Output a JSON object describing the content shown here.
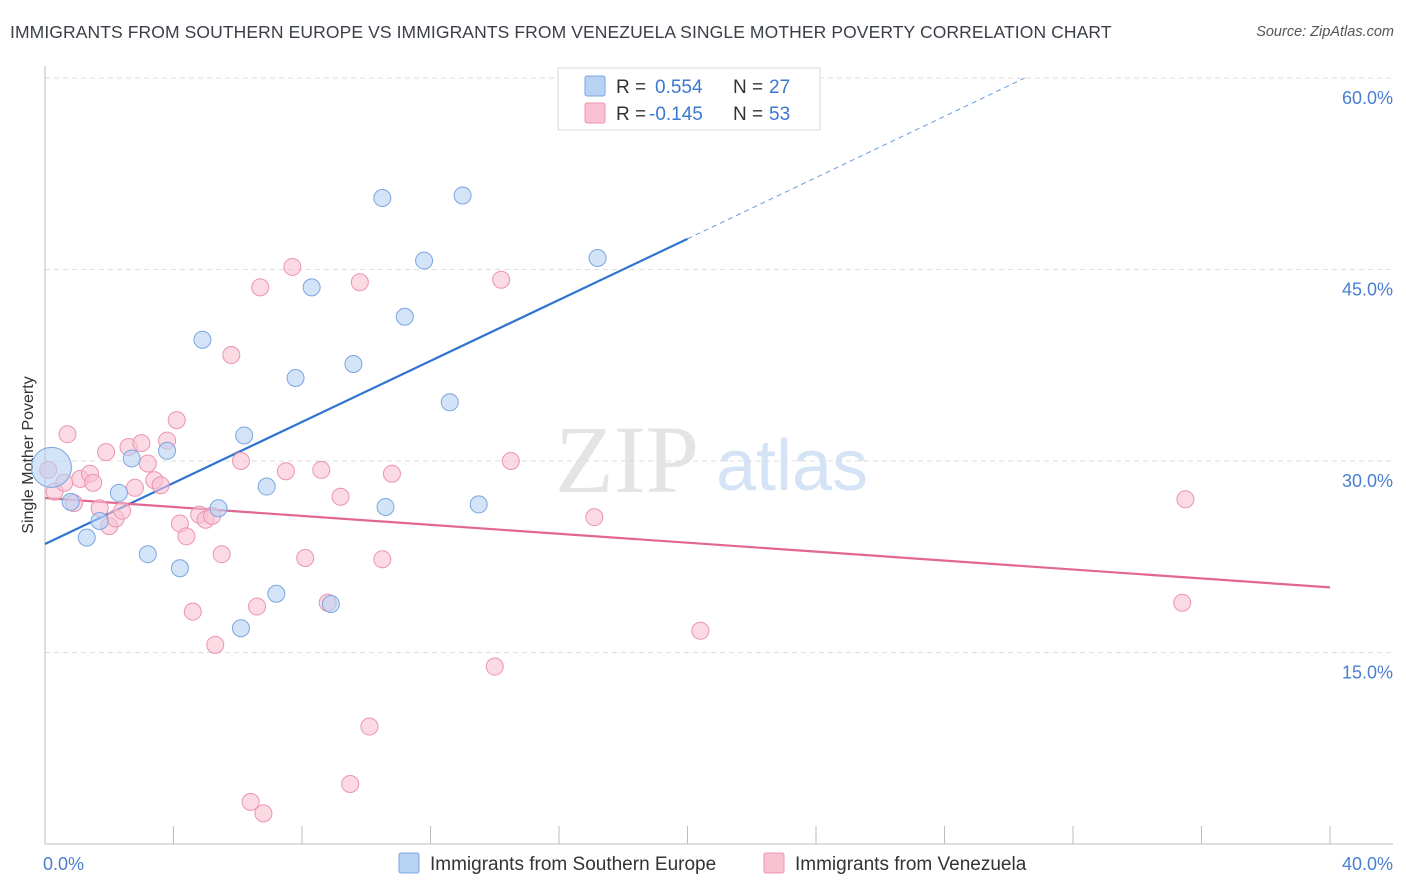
{
  "title": "IMMIGRANTS FROM SOUTHERN EUROPE VS IMMIGRANTS FROM VENEZUELA SINGLE MOTHER POVERTY CORRELATION CHART",
  "source": "Source: ZipAtlas.com",
  "watermark": {
    "zip": "ZIP",
    "atlas": "atlas"
  },
  "colors": {
    "blue_fill": "#b8d2f3",
    "blue_stroke": "#7aa6e0",
    "blue_line": "#2f74d0",
    "pink_fill": "#f8c2d2",
    "pink_stroke": "#ec94b0",
    "pink_line": "#e2668f",
    "axis_label": "#4a7fd0",
    "grid": "#dedede"
  },
  "legend": {
    "rows": [
      {
        "r_label": "R =",
        "r_value": "0.554",
        "n_label": "N =",
        "n_value": "27"
      },
      {
        "r_label": "R =",
        "r_value": "-0.145",
        "n_label": "N =",
        "n_value": "53"
      }
    ]
  },
  "chart_data": {
    "type": "scatter",
    "title": "IMMIGRANTS FROM SOUTHERN EUROPE VS IMMIGRANTS FROM VENEZUELA SINGLE MOTHER POVERTY CORRELATION CHART",
    "xlabel": "",
    "ylabel": "Single Mother Poverty",
    "xlim": [
      0,
      40
    ],
    "ylim": [
      0,
      60
    ],
    "x_tick_labels": [
      "0.0%",
      "40.0%"
    ],
    "y_ticks": [
      15,
      30,
      45,
      60
    ],
    "y_tick_labels": [
      "15.0%",
      "30.0%",
      "45.0%",
      "60.0%"
    ],
    "grid": true,
    "legend_position": "top-center",
    "series": [
      {
        "name": "Immigrants from Southern Europe",
        "color": "blue",
        "R": 0.554,
        "N": 27,
        "trend": {
          "x0": 0,
          "y0": 23.5,
          "x1": 20,
          "y1": 47.4,
          "dashed_to_x": 30.5,
          "dashed_to_y": 60.0
        },
        "points": [
          [
            0.2,
            29.5
          ],
          [
            0.8,
            26.8
          ],
          [
            1.3,
            24.0
          ],
          [
            1.7,
            25.3
          ],
          [
            2.3,
            27.5
          ],
          [
            2.7,
            30.2
          ],
          [
            3.2,
            22.7
          ],
          [
            3.8,
            30.8
          ],
          [
            4.2,
            21.6
          ],
          [
            4.9,
            39.5
          ],
          [
            5.4,
            26.3
          ],
          [
            6.1,
            16.9
          ],
          [
            6.2,
            32.0
          ],
          [
            6.9,
            28.0
          ],
          [
            7.2,
            19.6
          ],
          [
            7.8,
            36.5
          ],
          [
            8.3,
            43.6
          ],
          [
            8.9,
            18.8
          ],
          [
            9.6,
            37.6
          ],
          [
            10.5,
            50.6
          ],
          [
            10.6,
            26.4
          ],
          [
            11.2,
            41.3
          ],
          [
            11.8,
            45.7
          ],
          [
            12.6,
            34.6
          ],
          [
            13.0,
            50.8
          ],
          [
            13.5,
            26.6
          ],
          [
            17.2,
            45.9
          ]
        ]
      },
      {
        "name": "Immigrants from Venezuela",
        "color": "pink",
        "R": -0.145,
        "N": 53,
        "trend": {
          "x0": 0,
          "y0": 27.1,
          "x1": 40,
          "y1": 20.1
        },
        "points": [
          [
            0.1,
            29.3
          ],
          [
            0.3,
            27.6
          ],
          [
            0.6,
            28.3
          ],
          [
            0.7,
            32.1
          ],
          [
            0.9,
            26.7
          ],
          [
            1.1,
            28.6
          ],
          [
            1.4,
            29.0
          ],
          [
            1.5,
            28.3
          ],
          [
            1.7,
            26.3
          ],
          [
            1.9,
            30.7
          ],
          [
            2.0,
            24.9
          ],
          [
            2.2,
            25.5
          ],
          [
            2.4,
            26.1
          ],
          [
            2.6,
            31.1
          ],
          [
            2.8,
            27.9
          ],
          [
            3.0,
            31.4
          ],
          [
            3.2,
            29.8
          ],
          [
            3.4,
            28.5
          ],
          [
            3.6,
            28.1
          ],
          [
            3.8,
            31.6
          ],
          [
            4.1,
            33.2
          ],
          [
            4.2,
            25.1
          ],
          [
            4.4,
            24.1
          ],
          [
            4.6,
            18.2
          ],
          [
            4.8,
            25.8
          ],
          [
            5.0,
            25.4
          ],
          [
            5.2,
            25.7
          ],
          [
            5.3,
            15.6
          ],
          [
            5.5,
            22.7
          ],
          [
            5.8,
            38.3
          ],
          [
            6.1,
            30.0
          ],
          [
            6.4,
            3.3
          ],
          [
            6.6,
            18.6
          ],
          [
            6.7,
            43.6
          ],
          [
            6.8,
            2.4
          ],
          [
            7.5,
            29.2
          ],
          [
            7.7,
            45.2
          ],
          [
            8.1,
            22.4
          ],
          [
            8.6,
            29.3
          ],
          [
            8.8,
            18.9
          ],
          [
            9.2,
            27.2
          ],
          [
            9.5,
            4.7
          ],
          [
            9.8,
            44.0
          ],
          [
            10.1,
            9.2
          ],
          [
            10.5,
            22.3
          ],
          [
            10.8,
            29.0
          ],
          [
            14.0,
            13.9
          ],
          [
            14.2,
            44.2
          ],
          [
            14.5,
            30.0
          ],
          [
            17.1,
            25.6
          ],
          [
            20.4,
            16.7
          ],
          [
            35.4,
            18.9
          ],
          [
            35.5,
            27.0
          ]
        ]
      }
    ]
  },
  "bottom_legend": [
    {
      "label": "Immigrants from Southern Europe"
    },
    {
      "label": "Immigrants from Venezuela"
    }
  ]
}
